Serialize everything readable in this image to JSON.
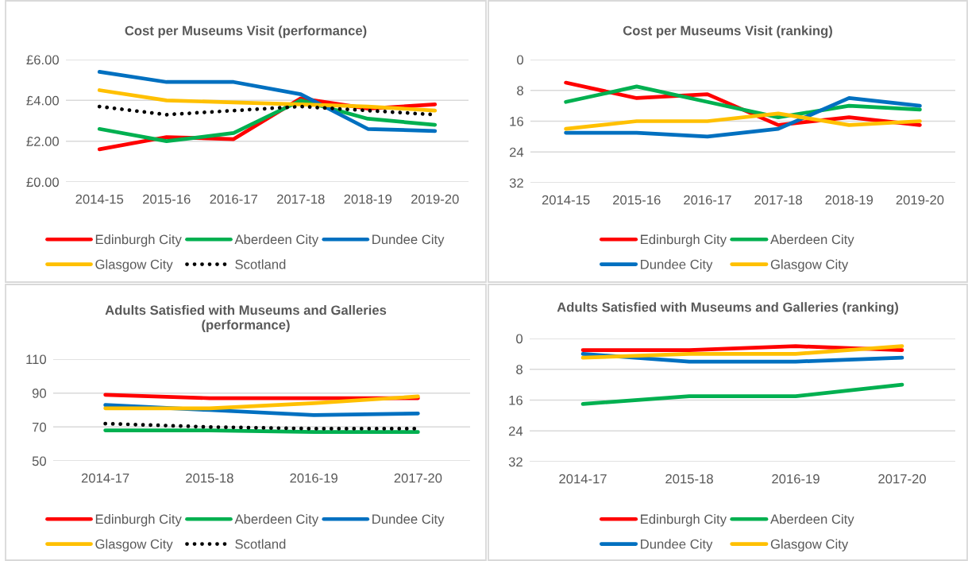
{
  "chart_data": [
    {
      "type": "line",
      "title": "Cost per Museums Visit (performance)",
      "categories": [
        "2014-15",
        "2015-16",
        "2016-17",
        "2017-18",
        "2018-19",
        "2019-20"
      ],
      "series": [
        {
          "name": "Edinburgh City",
          "color": "#ff0000",
          "values": [
            1.6,
            2.2,
            2.1,
            4.1,
            3.6,
            3.8
          ]
        },
        {
          "name": "Aberdeen City",
          "color": "#00b050",
          "values": [
            2.6,
            2.0,
            2.4,
            4.0,
            3.1,
            2.8
          ]
        },
        {
          "name": "Dundee City",
          "color": "#0070c0",
          "values": [
            5.4,
            4.9,
            4.9,
            4.3,
            2.6,
            2.5
          ]
        },
        {
          "name": "Glasgow City",
          "color": "#ffc000",
          "values": [
            4.5,
            4.0,
            3.9,
            3.8,
            3.7,
            3.5
          ]
        },
        {
          "name": "Scotland",
          "color": "#000000",
          "values": [
            3.7,
            3.3,
            3.5,
            3.7,
            3.5,
            3.3
          ],
          "line_style": "dotted"
        }
      ],
      "ylim": [
        0,
        6
      ],
      "yticks": [
        {
          "value": 0,
          "label": "£0.00"
        },
        {
          "value": 2,
          "label": "£2.00"
        },
        {
          "value": 4,
          "label": "£4.00"
        },
        {
          "value": 6,
          "label": "£6.00"
        }
      ],
      "grid": "y",
      "legend": "bottom"
    },
    {
      "type": "line",
      "title": "Cost per Museums Visit (ranking)",
      "categories": [
        "2014-15",
        "2015-16",
        "2016-17",
        "2017-18",
        "2018-19",
        "2019-20"
      ],
      "series": [
        {
          "name": "Edinburgh City",
          "color": "#ff0000",
          "values": [
            6,
            10,
            9,
            17,
            15,
            17
          ]
        },
        {
          "name": "Aberdeen City",
          "color": "#00b050",
          "values": [
            11,
            7,
            11,
            15,
            12,
            13
          ]
        },
        {
          "name": "Dundee City",
          "color": "#0070c0",
          "values": [
            19,
            19,
            20,
            18,
            10,
            12
          ]
        },
        {
          "name": "Glasgow City",
          "color": "#ffc000",
          "values": [
            18,
            16,
            16,
            14,
            17,
            16
          ]
        }
      ],
      "ylim": [
        32,
        0
      ],
      "yticks": [
        0,
        8,
        16,
        24,
        32
      ],
      "grid": "y",
      "legend": "bottom"
    },
    {
      "type": "line",
      "title": "Adults Satisfied with Museums and Galleries\n(performance)",
      "categories": [
        "2014-17",
        "2015-18",
        "2016-19",
        "2017-20"
      ],
      "series": [
        {
          "name": "Edinburgh City",
          "color": "#ff0000",
          "values": [
            89,
            87,
            87,
            87
          ]
        },
        {
          "name": "Aberdeen City",
          "color": "#00b050",
          "values": [
            68,
            68,
            67,
            67
          ]
        },
        {
          "name": "Dundee City",
          "color": "#0070c0",
          "values": [
            83,
            80,
            77,
            78
          ]
        },
        {
          "name": "Glasgow City",
          "color": "#ffc000",
          "values": [
            81,
            81,
            84,
            88
          ]
        },
        {
          "name": "Scotland",
          "color": "#000000",
          "values": [
            72,
            70,
            69,
            69
          ],
          "line_style": "dotted"
        }
      ],
      "ylim": [
        50,
        110
      ],
      "yticks": [
        50,
        70,
        90,
        110
      ],
      "grid": "y",
      "legend": "bottom"
    },
    {
      "type": "line",
      "title": "Adults Satisfied with Museums and Galleries (ranking)",
      "categories": [
        "2014-17",
        "2015-18",
        "2016-19",
        "2017-20"
      ],
      "series": [
        {
          "name": "Edinburgh City",
          "color": "#ff0000",
          "values": [
            3,
            3,
            2,
            3
          ]
        },
        {
          "name": "Aberdeen City",
          "color": "#00b050",
          "values": [
            17,
            15,
            15,
            12
          ]
        },
        {
          "name": "Dundee City",
          "color": "#0070c0",
          "values": [
            4,
            6,
            6,
            5
          ]
        },
        {
          "name": "Glasgow City",
          "color": "#ffc000",
          "values": [
            5,
            4,
            4,
            2
          ]
        }
      ],
      "ylim": [
        32,
        0
      ],
      "yticks": [
        0,
        8,
        16,
        24,
        32
      ],
      "grid": "y",
      "legend": "bottom"
    }
  ]
}
